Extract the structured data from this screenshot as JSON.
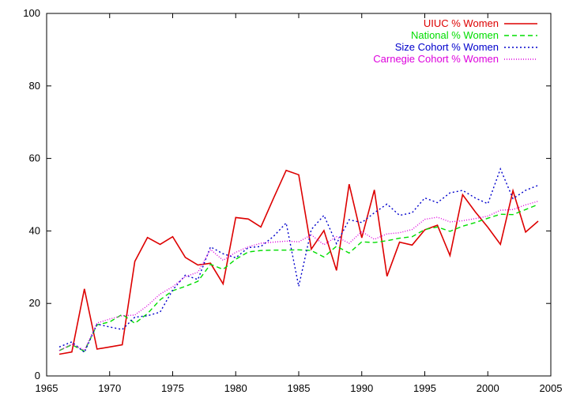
{
  "chart_data": {
    "type": "line",
    "title": "",
    "xlabel": "",
    "ylabel": "",
    "xlim": [
      1965,
      2005
    ],
    "ylim": [
      0,
      100
    ],
    "xticks": [
      1965,
      1970,
      1975,
      1980,
      1985,
      1990,
      1995,
      2000,
      2005
    ],
    "yticks": [
      0,
      20,
      40,
      60,
      80,
      100
    ],
    "grid": false,
    "legend_position": "top-right",
    "x": [
      1966,
      1967,
      1968,
      1969,
      1970,
      1971,
      1972,
      1973,
      1974,
      1975,
      1976,
      1977,
      1978,
      1979,
      1980,
      1981,
      1982,
      1983,
      1984,
      1985,
      1986,
      1987,
      1988,
      1989,
      1990,
      1991,
      1992,
      1993,
      1994,
      1995,
      1996,
      1997,
      1998,
      1999,
      2000,
      2001,
      2002,
      2003,
      2004
    ],
    "series": [
      {
        "name": "UIUC % Women",
        "color": "#dd0000",
        "dash": "solid",
        "values": [
          6,
          6.6,
          24,
          7.4,
          8,
          8.6,
          31.6,
          38.2,
          36.3,
          38.4,
          32.7,
          30.6,
          31.1,
          25.4,
          43.7,
          43.3,
          41.1,
          49,
          56.7,
          55.5,
          35,
          40.1,
          29.1,
          52.9,
          38.1,
          51.3,
          27.5,
          36.9,
          36.1,
          40.3,
          41.6,
          33.2,
          50,
          45.3,
          41,
          36.3,
          51.1,
          39.7,
          42.7
        ]
      },
      {
        "name": "National % Women",
        "color": "#00dd00",
        "dash": "6,4",
        "values": [
          7,
          8.6,
          6.8,
          14.1,
          14.9,
          17,
          14.5,
          17.2,
          21,
          23.5,
          24.7,
          26.1,
          30.8,
          29.4,
          32.2,
          34.2,
          34.6,
          34.7,
          34.7,
          34.8,
          34.6,
          32.8,
          35.8,
          33.9,
          37,
          36.8,
          37.3,
          38,
          38.4,
          40.4,
          41.1,
          39.9,
          41.3,
          42.3,
          43.5,
          44.6,
          44.5,
          45.9,
          47.3
        ]
      },
      {
        "name": "Size Cohort % Women",
        "color": "#0000cc",
        "dash": "2,3",
        "values": [
          8,
          9.4,
          6.5,
          14.3,
          13.5,
          12.8,
          16.2,
          16.6,
          17.6,
          23.7,
          27.8,
          26.6,
          35.6,
          33.7,
          32.6,
          35.4,
          35.7,
          38.5,
          42.2,
          24.7,
          40.4,
          44.3,
          36.5,
          43.1,
          42.3,
          45,
          47.4,
          44.3,
          45,
          49.1,
          47.8,
          50.5,
          51.2,
          49.1,
          47.5,
          57.1,
          48.9,
          51.2,
          52.6
        ]
      },
      {
        "name": "Carnegie Cohort % Women",
        "color": "#dd00dd",
        "dash": "1,2",
        "values": [
          7,
          8.8,
          7.1,
          14.6,
          15.7,
          16.6,
          16.8,
          19.4,
          22.6,
          24.6,
          27.4,
          28.6,
          34.9,
          31.9,
          34.1,
          35.6,
          36.6,
          36.9,
          37.2,
          37,
          38.9,
          36.2,
          38.4,
          36.6,
          39.8,
          37.7,
          39.2,
          39.5,
          40.4,
          43.2,
          43.8,
          42.5,
          42.8,
          43.4,
          44.1,
          45.7,
          45.9,
          47.2,
          48.2
        ]
      }
    ]
  }
}
